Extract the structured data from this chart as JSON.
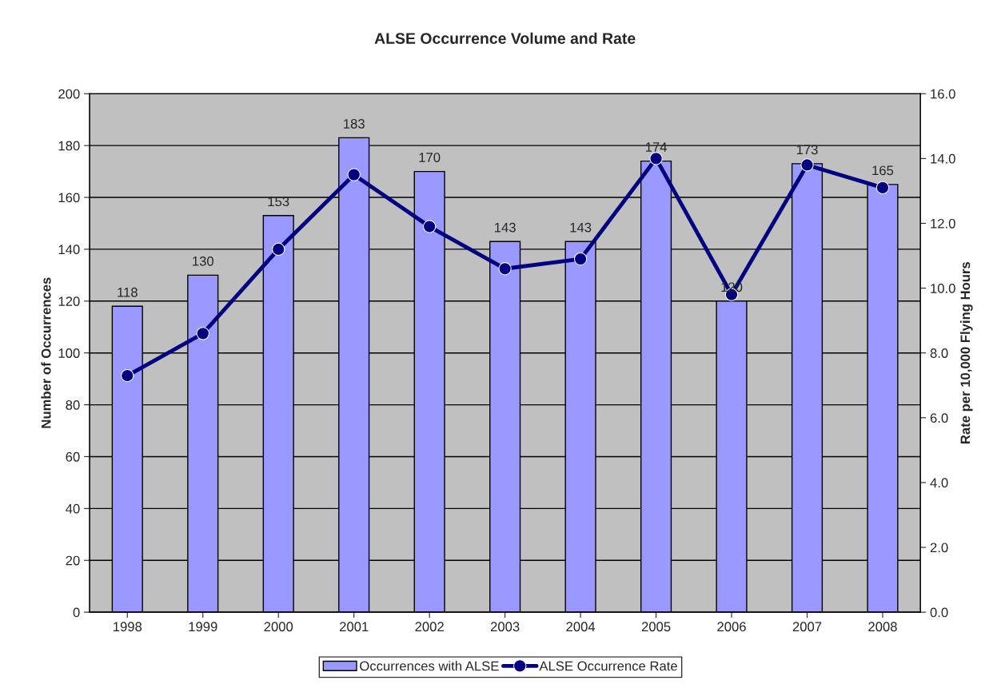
{
  "chart_data": {
    "type": "bar",
    "title": "ALSE Occurrence Volume and Rate",
    "ylabel": "Number of Occurrences",
    "y2label": "Rate per 10,000 Flying Hours",
    "categories": [
      "1998",
      "1999",
      "2000",
      "2001",
      "2002",
      "2003",
      "2004",
      "2005",
      "2006",
      "2007",
      "2008"
    ],
    "series": [
      {
        "name": "Occurrences with ALSE",
        "color": "#9999ff",
        "values": [
          118,
          130,
          153,
          183,
          170,
          143,
          143,
          174,
          120,
          173,
          165
        ],
        "data_labels": true
      },
      {
        "name": "ALSE Occurrence Rate",
        "type": "line",
        "axis": "y2",
        "color": "#000080",
        "marker": "circle",
        "values": [
          7.3,
          8.6,
          11.2,
          13.5,
          11.9,
          10.6,
          10.9,
          14.0,
          9.8,
          13.8,
          13.1
        ]
      }
    ],
    "ylim": [
      0,
      200
    ],
    "yticks": [
      0,
      20,
      40,
      60,
      80,
      100,
      120,
      140,
      160,
      180,
      200
    ],
    "y2lim": [
      0,
      16
    ],
    "y2ticks": [
      {
        "value": 0,
        "label": "0.0"
      },
      {
        "value": 2,
        "label": "2.0"
      },
      {
        "value": 4,
        "label": "4.0"
      },
      {
        "value": 6,
        "label": "6.0"
      },
      {
        "value": 8,
        "label": "8.0"
      },
      {
        "value": 10,
        "label": "10.0"
      },
      {
        "value": 12,
        "label": "12.0"
      },
      {
        "value": 14,
        "label": "14.0"
      },
      {
        "value": 16,
        "label": "16.0"
      }
    ],
    "grid": "y",
    "legend": "bottom"
  }
}
